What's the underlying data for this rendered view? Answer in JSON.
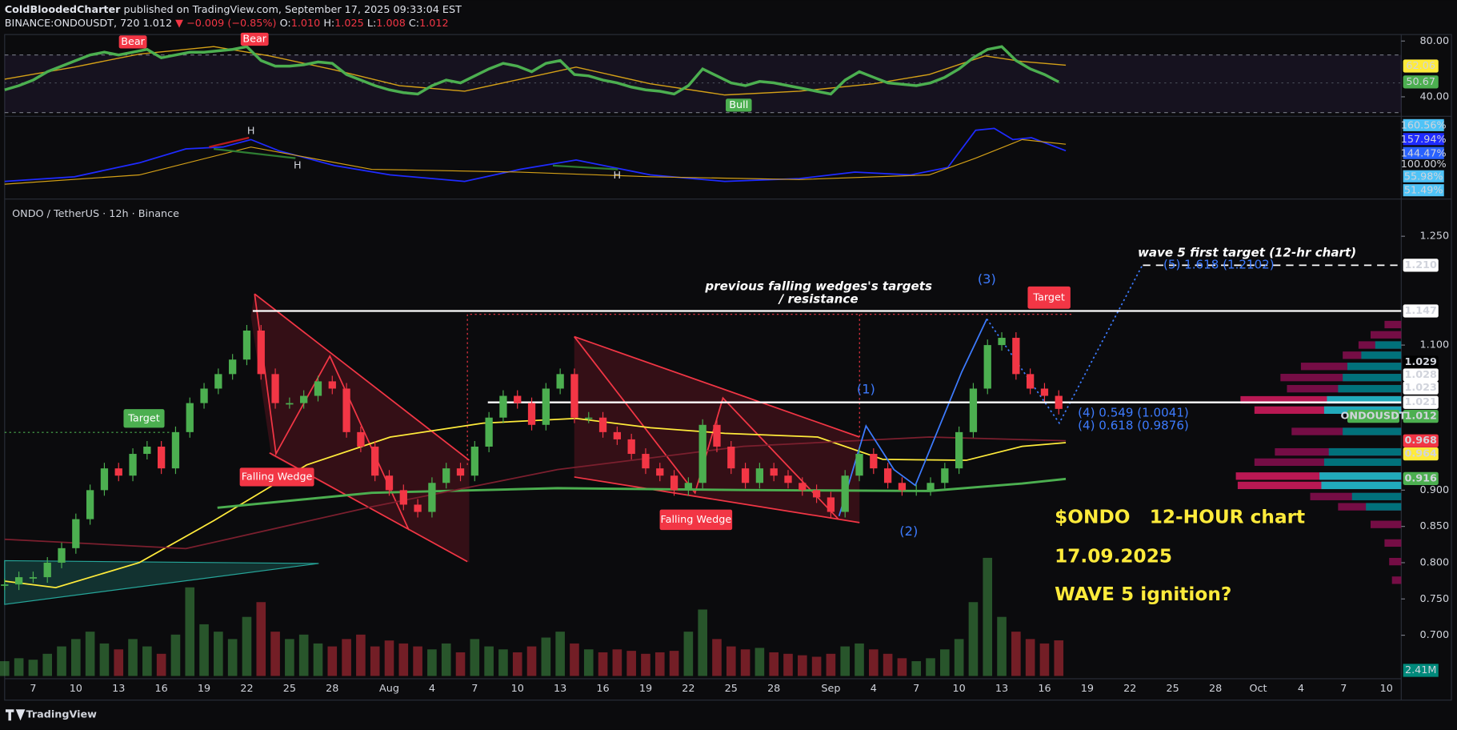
{
  "header": {
    "author": "ColdBloodedCharter",
    "published": "published on TradingView.com, September 17, 2025 09:33:04 EST",
    "symbol": "BINANCE:ONDOUSDT, 720",
    "last": "1.012",
    "change": "▼ −0.009 (−0.85%)",
    "o_label": "O:",
    "o": "1.010",
    "h_label": "H:",
    "h": "1.025",
    "l_label": "L:",
    "l": "1.008",
    "c_label": "C:",
    "c": "1.012"
  },
  "legend_title": "ONDO / TetherUS · 12h · Binance",
  "brand": "TradingView",
  "rsi": {
    "color": "#4caf50",
    "values": [
      45,
      48,
      52,
      58,
      62,
      66,
      70,
      72,
      70,
      72,
      74,
      68,
      70,
      72,
      72,
      73,
      74,
      76,
      66,
      62,
      62,
      63,
      65,
      64,
      56,
      52,
      48,
      45,
      43,
      42,
      48,
      52,
      50,
      55,
      60,
      64,
      62,
      58,
      64,
      66,
      56,
      55,
      52,
      50,
      47,
      45,
      44,
      42,
      48,
      60,
      55,
      50,
      48,
      51,
      50,
      48,
      46,
      44,
      42,
      52,
      58,
      54,
      50,
      49,
      48,
      50,
      54,
      60,
      68,
      74,
      76,
      66,
      60,
      56,
      50.67,
      null,
      null,
      null,
      null,
      null,
      null,
      null,
      null,
      null,
      null,
      null,
      null,
      null,
      null,
      null,
      null,
      null,
      null,
      null,
      null,
      null,
      null,
      null,
      null
    ],
    "ylim": [
      28,
      84
    ],
    "yticks": [
      {
        "value": 80,
        "label": "80.00"
      },
      {
        "value": 40,
        "label": "40.00"
      }
    ],
    "labels": [
      {
        "value": 62.06,
        "label": "62.06",
        "color": "#ffeb3b",
        "text_color": "#000000"
      },
      {
        "value": 50.67,
        "label": "50.67",
        "color": "#4caf50",
        "text_color": "#000000"
      }
    ],
    "markers": [
      "Bear",
      "Bear",
      "Bull"
    ]
  },
  "indicator2": {
    "labels": [
      "160.56%",
      "157.94%",
      "144.47%",
      "100.00%",
      "55.98%",
      "51.49%"
    ],
    "markers": [
      "H",
      "H",
      "H"
    ]
  },
  "chart_data": {
    "type": "candlestick",
    "categories": [
      null,
      null,
      "7",
      null,
      null,
      "10",
      null,
      null,
      "13",
      null,
      null,
      "16",
      null,
      null,
      "19",
      null,
      null,
      "22",
      null,
      null,
      "25",
      null,
      null,
      "28",
      null,
      null,
      null,
      "Aug",
      null,
      null,
      "4",
      null,
      null,
      "7",
      null,
      null,
      "10",
      null,
      null,
      "13",
      null,
      null,
      "16",
      null,
      null,
      "19",
      null,
      null,
      "22",
      null,
      null,
      "25",
      null,
      null,
      "28",
      null,
      null,
      null,
      "Sep",
      null,
      null,
      "4",
      null,
      null,
      "7",
      null,
      null,
      "10",
      null,
      null,
      "13",
      null,
      null,
      "16",
      null,
      null,
      "19",
      null,
      null,
      "22",
      null,
      null,
      "25",
      null,
      null,
      "28",
      null,
      null,
      "Oct",
      null,
      null,
      "4",
      null,
      null,
      "7",
      null,
      null,
      "10",
      null
    ],
    "values": [
      0.77,
      0.78,
      0.78,
      0.8,
      0.82,
      0.86,
      0.9,
      0.93,
      0.92,
      0.95,
      0.96,
      0.93,
      0.98,
      1.02,
      1.04,
      1.06,
      1.08,
      1.12,
      1.06,
      1.02,
      1.02,
      1.03,
      1.05,
      1.04,
      0.98,
      0.96,
      0.92,
      0.9,
      0.88,
      0.87,
      0.91,
      0.93,
      0.92,
      0.96,
      1.0,
      1.03,
      1.02,
      0.99,
      1.04,
      1.06,
      1.0,
      1.0,
      0.98,
      0.97,
      0.95,
      0.93,
      0.92,
      0.9,
      0.91,
      0.99,
      0.96,
      0.93,
      0.91,
      0.93,
      0.92,
      0.91,
      0.9,
      0.89,
      0.87,
      0.92,
      0.95,
      0.93,
      0.91,
      0.9,
      0.9,
      0.91,
      0.93,
      0.98,
      1.04,
      1.1,
      1.11,
      1.06,
      1.04,
      1.03,
      1.012,
      null,
      null,
      null,
      null,
      null,
      null,
      null,
      null,
      null,
      null,
      null,
      null,
      null,
      null,
      null,
      null,
      null,
      null,
      null,
      null,
      null,
      null,
      null,
      null
    ],
    "up_color": "#4caf50",
    "down_color": "#f23645",
    "ylim": [
      0.64,
      1.3
    ],
    "yticks": [
      {
        "value": 1.25,
        "label": "1.250"
      },
      {
        "value": 1.1,
        "label": "1.100"
      },
      {
        "value": 0.9,
        "label": "0.900"
      },
      {
        "value": 0.85,
        "label": "0.850"
      },
      {
        "value": 0.8,
        "label": "0.800"
      },
      {
        "value": 0.75,
        "label": "0.750"
      },
      {
        "value": 0.7,
        "label": "0.700"
      }
    ],
    "price_labels": [
      {
        "value": 1.21,
        "label": "1.210",
        "color": "#ffffff",
        "text_color": "#000000",
        "line": "dashed"
      },
      {
        "value": 1.147,
        "label": "1.147",
        "color": "#ffffff",
        "text_color": "#000000",
        "line": "solid"
      },
      {
        "value": 1.029,
        "label": "1.029",
        "color": "#000000",
        "text_color": "#ffffff"
      },
      {
        "value": 1.028,
        "label": "1.028",
        "color": "#ffffff",
        "text_color": "#000000"
      },
      {
        "value": 1.023,
        "label": "1.023",
        "color": "#ffffff",
        "text_color": "#000000"
      },
      {
        "value": 1.021,
        "label": "1.021",
        "color": "#ffffff",
        "text_color": "#000000",
        "line": "solid"
      },
      {
        "value": 1.012,
        "label": "1.012",
        "color": "#4caf50",
        "text_color": "#ffffff"
      },
      {
        "value": 1.012,
        "label": "ONDOUSDT",
        "color": "#4caf50",
        "text_color": "#ffffff"
      },
      {
        "value": 0.968,
        "label": "0.968",
        "color": "#f23645",
        "text_color": "#ffffff"
      },
      {
        "value": 0.964,
        "label": "0.964",
        "color": "#ffeb3b",
        "text_color": "#000000"
      },
      {
        "value": 0.916,
        "label": "0.916",
        "color": "#4caf50",
        "text_color": "#ffffff"
      }
    ],
    "volume": {
      "values": [
        1.0,
        1.2,
        1.1,
        1.5,
        2.0,
        2.5,
        3.0,
        2.2,
        1.8,
        2.5,
        2.0,
        1.5,
        2.8,
        6.0,
        3.5,
        3.0,
        2.5,
        4.0,
        5.0,
        3.0,
        2.5,
        2.8,
        2.2,
        2.0,
        2.5,
        2.8,
        2.0,
        2.4,
        2.2,
        2.0,
        1.8,
        2.2,
        1.6,
        2.5,
        2.0,
        1.8,
        1.6,
        2.0,
        2.6,
        3.0,
        2.2,
        1.8,
        1.6,
        1.8,
        1.7,
        1.5,
        1.6,
        1.7,
        3.0,
        4.5,
        2.5,
        2.0,
        1.8,
        1.9,
        1.6,
        1.5,
        1.4,
        1.3,
        1.5,
        2.0,
        2.2,
        1.8,
        1.5,
        1.2,
        1.0,
        1.2,
        1.8,
        2.5,
        5.0,
        8.0,
        4.0,
        3.0,
        2.5,
        2.2,
        2.41,
        null,
        null,
        null,
        null,
        null,
        null,
        null,
        null,
        null,
        null,
        null,
        null,
        null,
        null,
        null,
        null,
        null,
        null,
        null,
        null,
        null,
        null,
        null,
        null
      ],
      "ylim": [
        0,
        8.5
      ],
      "last_label": "2.41M"
    },
    "annotations": {
      "resistance_1": "previous falling wedges's targets",
      "resistance_2": "/ resistance",
      "wave5_target": "wave 5 first target (12-hr chart)",
      "fib_5": "(5) 1.618 (1.2102)",
      "fib_4a": "(4) 0.549 (1.0041)",
      "fib_4b": "(4) 0.618 (0.9876)",
      "wave_1": "(1)",
      "wave_2": "(2)",
      "wave_3": "(3)",
      "target_red": "Target",
      "target_green": "Target",
      "wedge_1": "Falling Wedge",
      "wedge_2": "Falling Wedge",
      "title_1": "$ONDO   12-HOUR chart",
      "title_2": "17.09.2025",
      "title_3": "WAVE 5 ignition?"
    }
  }
}
